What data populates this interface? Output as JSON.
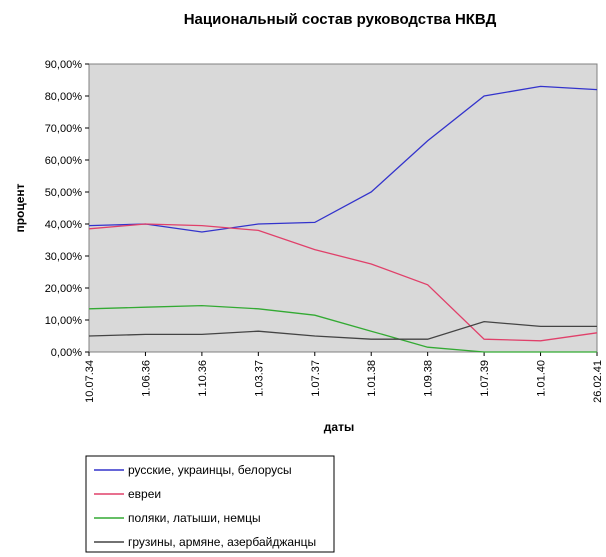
{
  "chart_data": {
    "type": "line",
    "title": "Национальный состав руководства НКВД",
    "xlabel": "даты",
    "ylabel": "процент",
    "ylim": [
      0,
      90
    ],
    "y_ticks": [
      "0,00%",
      "10,00%",
      "20,00%",
      "30,00%",
      "40,00%",
      "50,00%",
      "60,00%",
      "70,00%",
      "80,00%",
      "90,00%"
    ],
    "categories": [
      "10.07.34",
      "1.06.36",
      "1.10.36",
      "1.03.37",
      "1.07.37",
      "1.01.38",
      "1.09.38",
      "1.07.39",
      "1.01.40",
      "26.02.41"
    ],
    "grid": false,
    "plot_background": "#d9d9d9",
    "legend_position": "bottom",
    "series": [
      {
        "name": "русские, украинцы, белорусы",
        "color": "#3333cc",
        "values": [
          39.5,
          40,
          37.5,
          40,
          40.5,
          50,
          66,
          80,
          83,
          82
        ]
      },
      {
        "name": "евреи",
        "color": "#e0406a",
        "values": [
          38.5,
          40,
          39.5,
          38,
          32,
          27.5,
          21,
          4,
          3.5,
          6
        ]
      },
      {
        "name": "поляки, латыши, немцы",
        "color": "#33aa33",
        "values": [
          13.5,
          14,
          14.5,
          13.5,
          11.5,
          6.5,
          1.5,
          0,
          0,
          0
        ]
      },
      {
        "name": "грузины, армяне, азербайджанцы",
        "color": "#444444",
        "values": [
          5,
          5.5,
          5.5,
          6.5,
          5,
          4,
          4,
          9.5,
          8,
          8
        ]
      }
    ]
  }
}
